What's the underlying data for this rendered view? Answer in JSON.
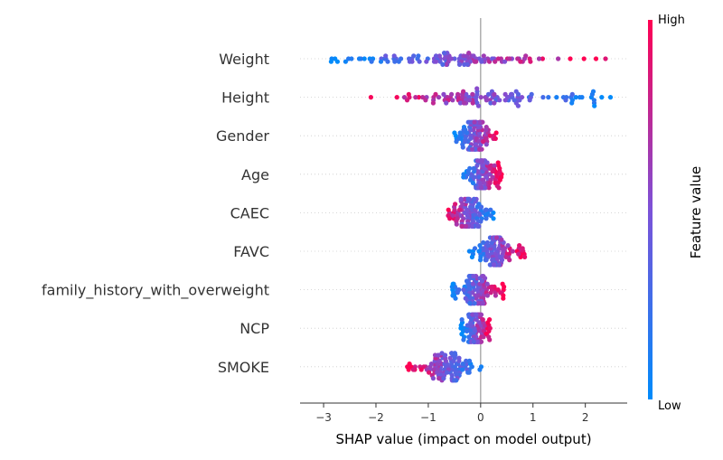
{
  "chart_data": {
    "type": "scatter",
    "subtype": "shap-beeswarm",
    "title": "",
    "xlabel": "SHAP value (impact on model output)",
    "xlim": [
      -3.45,
      2.8
    ],
    "xticks": [
      -3,
      -2,
      -1,
      0,
      1,
      2
    ],
    "tick_labels": [
      "−3",
      "−2",
      "−1",
      "0",
      "1",
      "2"
    ],
    "colorbar": {
      "label": "Feature value",
      "high_label": "High",
      "low_label": "Low",
      "low_color": "#008bfb",
      "mid_color": "#7c52d8",
      "high_color": "#ff0052"
    },
    "features": [
      {
        "name": "Weight",
        "min": -3.2,
        "max": 2.4,
        "mean_abs": 1.4
      },
      {
        "name": "Height",
        "min": -2.1,
        "max": 2.5,
        "mean_abs": 0.9
      },
      {
        "name": "Gender",
        "min": -0.55,
        "max": 0.35,
        "mean_abs": 0.2
      },
      {
        "name": "Age",
        "min": -0.35,
        "max": 0.4,
        "mean_abs": 0.12
      },
      {
        "name": "CAEC",
        "min": -0.7,
        "max": 0.25,
        "mean_abs": 0.08
      },
      {
        "name": "FAVC",
        "min": -0.25,
        "max": 0.85,
        "mean_abs": 0.1
      },
      {
        "name": "family_history_with_overweight",
        "min": -0.55,
        "max": 0.45,
        "mean_abs": 0.08
      },
      {
        "name": "NCP",
        "min": -0.4,
        "max": 0.2,
        "mean_abs": 0.05
      },
      {
        "name": "SMOKE",
        "min": -1.4,
        "max": 0.1,
        "mean_abs": 0.04
      }
    ]
  }
}
